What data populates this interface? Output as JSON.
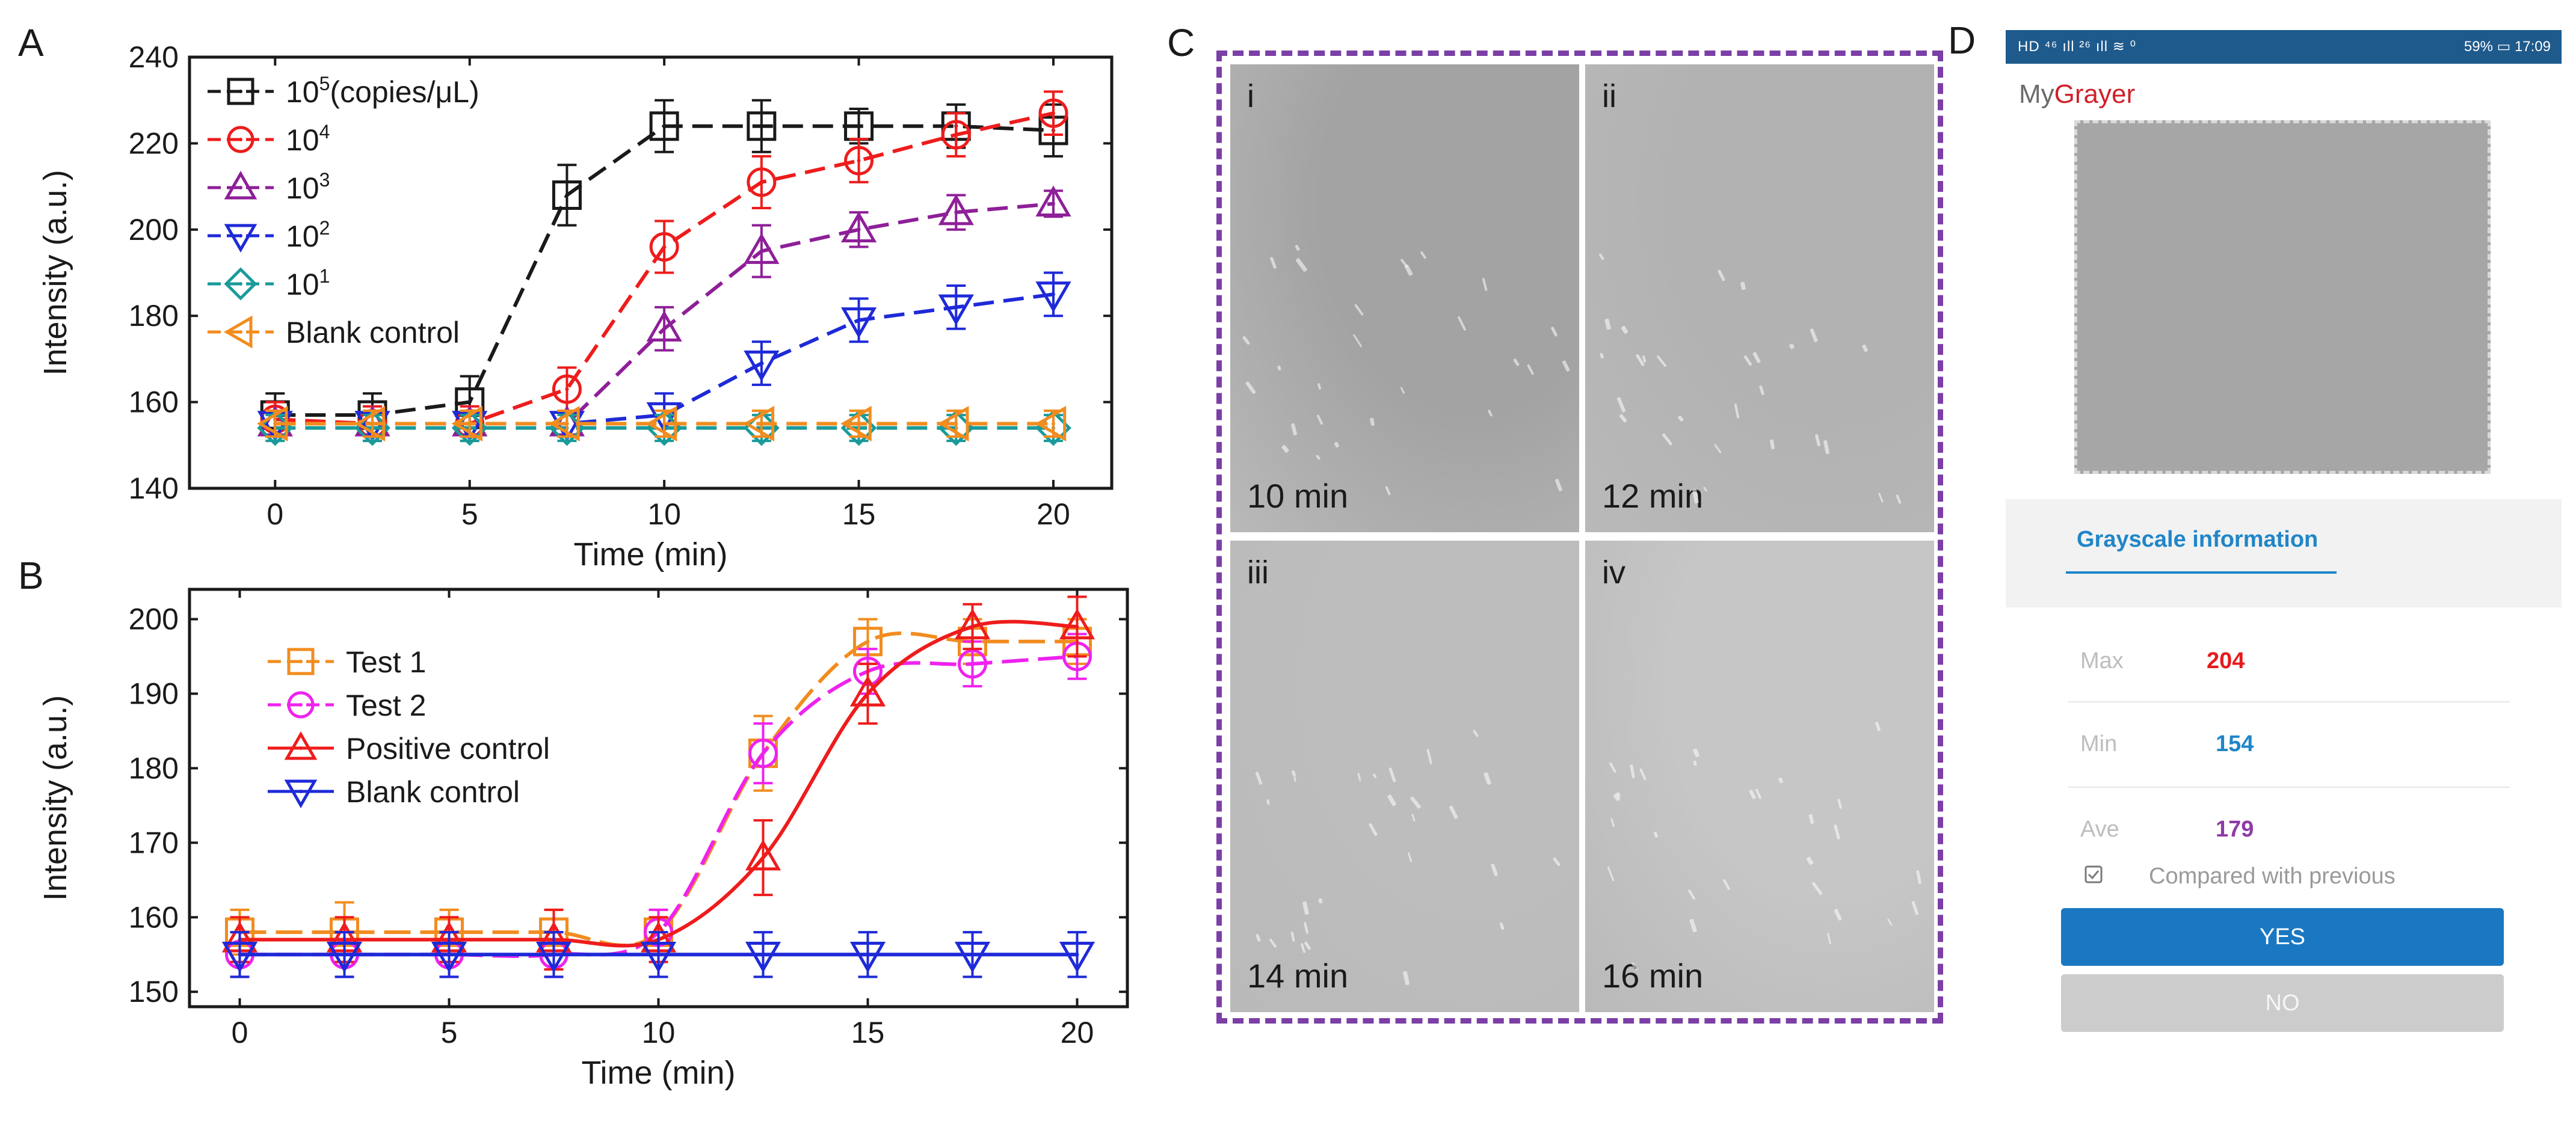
{
  "panel_labels": {
    "a": "A",
    "b": "B",
    "c": "C",
    "d": "D"
  },
  "chart_data": [
    {
      "type": "line",
      "title": "",
      "xlabel": "Time (min)",
      "ylabel": "Intensity (a.u.)",
      "xlim": [
        -2.2,
        21.5
      ],
      "ylim": [
        140,
        240
      ],
      "xticks": [
        0,
        5,
        10,
        15,
        20
      ],
      "yticks": [
        140,
        160,
        180,
        200,
        220,
        240
      ],
      "x": [
        0,
        2.5,
        5,
        7.5,
        10,
        12.5,
        15,
        17.5,
        20
      ],
      "legend_position": "top-left",
      "series": [
        {
          "name": "10",
          "sup": "5",
          "suffix": "(copies/μL)",
          "color": "#1a1a1a",
          "marker": "square",
          "values": [
            157,
            157,
            160,
            208,
            224,
            224,
            224,
            224,
            223
          ],
          "errors": [
            5,
            5,
            6,
            7,
            6,
            6,
            4,
            5,
            6
          ]
        },
        {
          "name": "10",
          "sup": "4",
          "suffix": "",
          "color": "#ee1c1c",
          "marker": "circle",
          "values": [
            156,
            155,
            155,
            163,
            196,
            211,
            216,
            222,
            227
          ],
          "errors": [
            4,
            4,
            4,
            5,
            6,
            6,
            5,
            5,
            5
          ]
        },
        {
          "name": "10",
          "sup": "3",
          "suffix": "",
          "color": "#8e1f98",
          "marker": "triangle-up",
          "values": [
            155,
            155,
            155,
            155,
            177,
            195,
            200,
            204,
            206
          ],
          "errors": [
            3,
            3,
            3,
            3,
            5,
            6,
            4,
            4,
            3
          ]
        },
        {
          "name": "10",
          "sup": "2",
          "suffix": "",
          "color": "#1e2ad8",
          "marker": "triangle-down",
          "values": [
            155,
            155,
            155,
            155,
            157,
            169,
            179,
            182,
            185
          ],
          "errors": [
            3,
            3,
            3,
            3,
            5,
            5,
            5,
            5,
            5
          ]
        },
        {
          "name": "10",
          "sup": "1",
          "suffix": "",
          "color": "#1a9a9a",
          "marker": "diamond",
          "values": [
            154,
            154,
            154,
            154,
            154,
            154,
            154,
            154,
            154
          ],
          "errors": [
            3,
            3,
            3,
            3,
            3,
            3,
            3,
            3,
            3
          ]
        },
        {
          "name": "Blank control",
          "sup": "",
          "suffix": "",
          "color": "#f28c1e",
          "marker": "triangle-left",
          "values": [
            155,
            155,
            155,
            155,
            155,
            155,
            155,
            155,
            155
          ],
          "errors": [
            3,
            3,
            3,
            3,
            3,
            3,
            3,
            3,
            3
          ]
        }
      ]
    },
    {
      "type": "line",
      "title": "",
      "xlabel": "Time (min)",
      "ylabel": "Intensity (a.u.)",
      "xlim": [
        -1.2,
        21.2
      ],
      "ylim": [
        148,
        204
      ],
      "xticks": [
        0,
        5,
        10,
        15,
        20
      ],
      "yticks": [
        150,
        160,
        170,
        180,
        190,
        200
      ],
      "x": [
        0,
        2.5,
        5,
        7.5,
        10,
        12.5,
        15,
        17.5,
        20
      ],
      "legend_position": "top-left",
      "series": [
        {
          "name": "Test 1",
          "color": "#f28c1e",
          "marker": "square",
          "dash": "long",
          "values": [
            158,
            158,
            158,
            158,
            158,
            182,
            197,
            197,
            197
          ],
          "errors": [
            3,
            4,
            3,
            3,
            3,
            5,
            3,
            3,
            3
          ]
        },
        {
          "name": "Test 2",
          "color": "#ee22ee",
          "marker": "circle",
          "dash": "long",
          "values": [
            155,
            155,
            155,
            155,
            158,
            182,
            193,
            194,
            195
          ],
          "errors": [
            3,
            3,
            3,
            3,
            3,
            4,
            3,
            3,
            3
          ]
        },
        {
          "name": "Positive control",
          "color": "#ee1c1c",
          "marker": "triangle-up",
          "dash": "solid",
          "values": [
            157,
            157,
            157,
            157,
            157,
            168,
            190,
            199,
            199
          ],
          "errors": [
            3,
            3,
            3,
            4,
            3,
            5,
            4,
            3,
            4
          ]
        },
        {
          "name": "Blank control",
          "color": "#1e2ad8",
          "marker": "triangle-down",
          "dash": "solid",
          "values": [
            155,
            155,
            155,
            155,
            155,
            155,
            155,
            155,
            155
          ],
          "errors": [
            3,
            3,
            3,
            3,
            3,
            3,
            3,
            3,
            3
          ]
        }
      ]
    }
  ],
  "panel_c": {
    "images": [
      {
        "roman": "i",
        "time": "10 min",
        "shade": "#a3a3a3"
      },
      {
        "roman": "ii",
        "time": "12 min",
        "shade": "#b2b2b2"
      },
      {
        "roman": "iii",
        "time": "14 min",
        "shade": "#bdbdbd"
      },
      {
        "roman": "iv",
        "time": "16 min",
        "shade": "#c6c6c6"
      }
    ]
  },
  "phone": {
    "status_left": "HD ⁴⁶ ıll ²⁶ ıll ≋ ⁰",
    "status_right": "59% ▭ 17:09",
    "title_my": "My",
    "title_gray": "Gray",
    "title_er": "er",
    "grayscale_title": "Grayscale information",
    "stats": [
      {
        "label": "Max",
        "value": "204",
        "color": "#e51b1b"
      },
      {
        "label": "Min",
        "value": "154",
        "color": "#1f86c8"
      },
      {
        "label": "Ave",
        "value": "179",
        "color": "#8e3aa6"
      }
    ],
    "compare_label": "Compared with previous",
    "yes_label": "YES",
    "no_label": "NO"
  }
}
